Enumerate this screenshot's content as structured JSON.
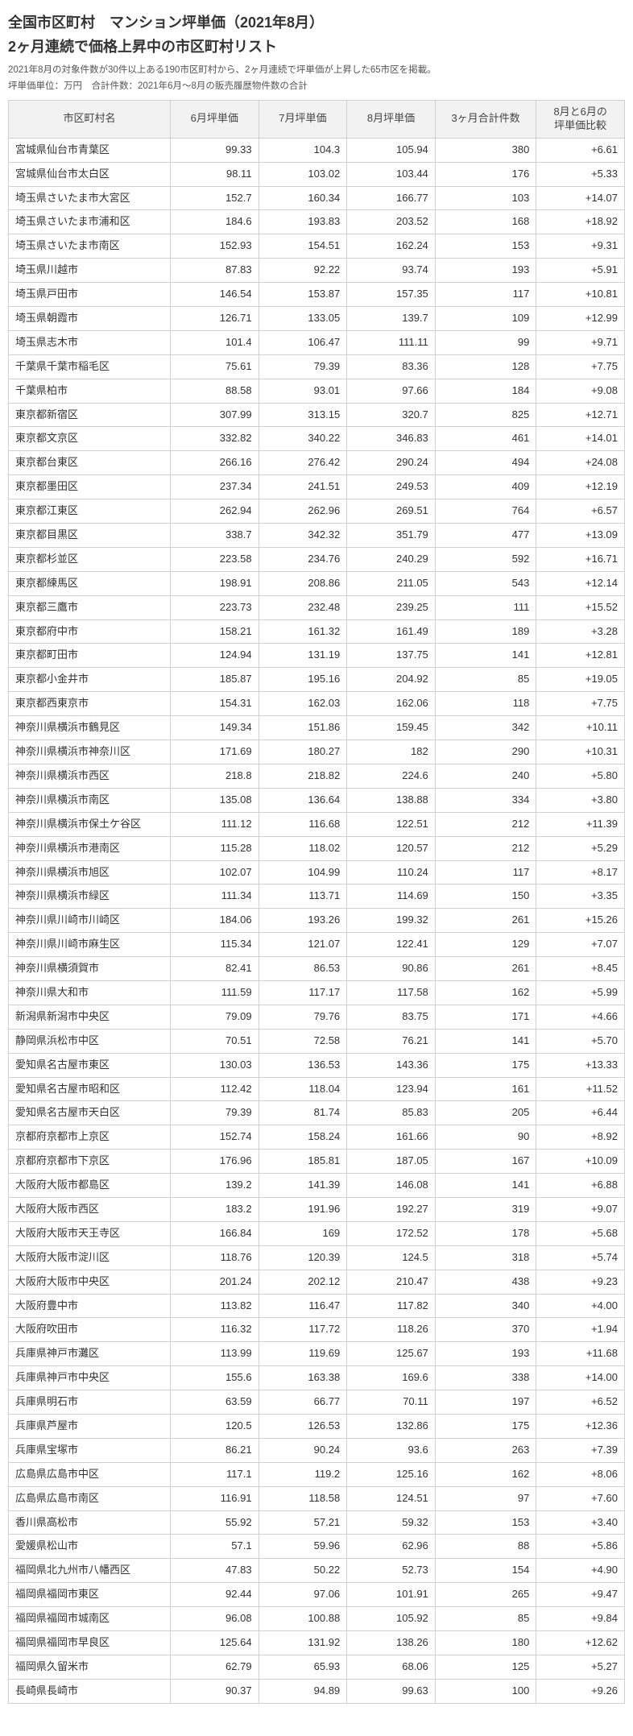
{
  "title1": "全国市区町村　マンション坪単価（2021年8月）",
  "title2": "2ヶ月連続で価格上昇中の市区町村リスト",
  "sub1": "2021年8月の対象件数が30件以上ある190市区町村から、2ヶ月連続で坪単価が上昇した65市区を掲載。",
  "sub2": "坪単価単位：万円　合計件数：2021年6月～8月の販売履歴物件数の合計",
  "headers": [
    "市区町村名",
    "6月坪単価",
    "7月坪単価",
    "8月坪単価",
    "3ヶ月合計件数",
    "8月と6月の\n坪単価比較"
  ],
  "rows": [
    [
      "宮城県仙台市青葉区",
      "99.33",
      "104.3",
      "105.94",
      "380",
      "+6.61"
    ],
    [
      "宮城県仙台市太白区",
      "98.11",
      "103.02",
      "103.44",
      "176",
      "+5.33"
    ],
    [
      "埼玉県さいたま市大宮区",
      "152.7",
      "160.34",
      "166.77",
      "103",
      "+14.07"
    ],
    [
      "埼玉県さいたま市浦和区",
      "184.6",
      "193.83",
      "203.52",
      "168",
      "+18.92"
    ],
    [
      "埼玉県さいたま市南区",
      "152.93",
      "154.51",
      "162.24",
      "153",
      "+9.31"
    ],
    [
      "埼玉県川越市",
      "87.83",
      "92.22",
      "93.74",
      "193",
      "+5.91"
    ],
    [
      "埼玉県戸田市",
      "146.54",
      "153.87",
      "157.35",
      "117",
      "+10.81"
    ],
    [
      "埼玉県朝霞市",
      "126.71",
      "133.05",
      "139.7",
      "109",
      "+12.99"
    ],
    [
      "埼玉県志木市",
      "101.4",
      "106.47",
      "111.11",
      "99",
      "+9.71"
    ],
    [
      "千葉県千葉市稲毛区",
      "75.61",
      "79.39",
      "83.36",
      "128",
      "+7.75"
    ],
    [
      "千葉県柏市",
      "88.58",
      "93.01",
      "97.66",
      "184",
      "+9.08"
    ],
    [
      "東京都新宿区",
      "307.99",
      "313.15",
      "320.7",
      "825",
      "+12.71"
    ],
    [
      "東京都文京区",
      "332.82",
      "340.22",
      "346.83",
      "461",
      "+14.01"
    ],
    [
      "東京都台東区",
      "266.16",
      "276.42",
      "290.24",
      "494",
      "+24.08"
    ],
    [
      "東京都墨田区",
      "237.34",
      "241.51",
      "249.53",
      "409",
      "+12.19"
    ],
    [
      "東京都江東区",
      "262.94",
      "262.96",
      "269.51",
      "764",
      "+6.57"
    ],
    [
      "東京都目黒区",
      "338.7",
      "342.32",
      "351.79",
      "477",
      "+13.09"
    ],
    [
      "東京都杉並区",
      "223.58",
      "234.76",
      "240.29",
      "592",
      "+16.71"
    ],
    [
      "東京都練馬区",
      "198.91",
      "208.86",
      "211.05",
      "543",
      "+12.14"
    ],
    [
      "東京都三鷹市",
      "223.73",
      "232.48",
      "239.25",
      "111",
      "+15.52"
    ],
    [
      "東京都府中市",
      "158.21",
      "161.32",
      "161.49",
      "189",
      "+3.28"
    ],
    [
      "東京都町田市",
      "124.94",
      "131.19",
      "137.75",
      "141",
      "+12.81"
    ],
    [
      "東京都小金井市",
      "185.87",
      "195.16",
      "204.92",
      "85",
      "+19.05"
    ],
    [
      "東京都西東京市",
      "154.31",
      "162.03",
      "162.06",
      "118",
      "+7.75"
    ],
    [
      "神奈川県横浜市鶴見区",
      "149.34",
      "151.86",
      "159.45",
      "342",
      "+10.11"
    ],
    [
      "神奈川県横浜市神奈川区",
      "171.69",
      "180.27",
      "182",
      "290",
      "+10.31"
    ],
    [
      "神奈川県横浜市西区",
      "218.8",
      "218.82",
      "224.6",
      "240",
      "+5.80"
    ],
    [
      "神奈川県横浜市南区",
      "135.08",
      "136.64",
      "138.88",
      "334",
      "+3.80"
    ],
    [
      "神奈川県横浜市保土ケ谷区",
      "111.12",
      "116.68",
      "122.51",
      "212",
      "+11.39"
    ],
    [
      "神奈川県横浜市港南区",
      "115.28",
      "118.02",
      "120.57",
      "212",
      "+5.29"
    ],
    [
      "神奈川県横浜市旭区",
      "102.07",
      "104.99",
      "110.24",
      "117",
      "+8.17"
    ],
    [
      "神奈川県横浜市緑区",
      "111.34",
      "113.71",
      "114.69",
      "150",
      "+3.35"
    ],
    [
      "神奈川県川崎市川崎区",
      "184.06",
      "193.26",
      "199.32",
      "261",
      "+15.26"
    ],
    [
      "神奈川県川崎市麻生区",
      "115.34",
      "121.07",
      "122.41",
      "129",
      "+7.07"
    ],
    [
      "神奈川県横須賀市",
      "82.41",
      "86.53",
      "90.86",
      "261",
      "+8.45"
    ],
    [
      "神奈川県大和市",
      "111.59",
      "117.17",
      "117.58",
      "162",
      "+5.99"
    ],
    [
      "新潟県新潟市中央区",
      "79.09",
      "79.76",
      "83.75",
      "171",
      "+4.66"
    ],
    [
      "静岡県浜松市中区",
      "70.51",
      "72.58",
      "76.21",
      "141",
      "+5.70"
    ],
    [
      "愛知県名古屋市東区",
      "130.03",
      "136.53",
      "143.36",
      "175",
      "+13.33"
    ],
    [
      "愛知県名古屋市昭和区",
      "112.42",
      "118.04",
      "123.94",
      "161",
      "+11.52"
    ],
    [
      "愛知県名古屋市天白区",
      "79.39",
      "81.74",
      "85.83",
      "205",
      "+6.44"
    ],
    [
      "京都府京都市上京区",
      "152.74",
      "158.24",
      "161.66",
      "90",
      "+8.92"
    ],
    [
      "京都府京都市下京区",
      "176.96",
      "185.81",
      "187.05",
      "167",
      "+10.09"
    ],
    [
      "大阪府大阪市都島区",
      "139.2",
      "141.39",
      "146.08",
      "141",
      "+6.88"
    ],
    [
      "大阪府大阪市西区",
      "183.2",
      "191.96",
      "192.27",
      "319",
      "+9.07"
    ],
    [
      "大阪府大阪市天王寺区",
      "166.84",
      "169",
      "172.52",
      "178",
      "+5.68"
    ],
    [
      "大阪府大阪市淀川区",
      "118.76",
      "120.39",
      "124.5",
      "318",
      "+5.74"
    ],
    [
      "大阪府大阪市中央区",
      "201.24",
      "202.12",
      "210.47",
      "438",
      "+9.23"
    ],
    [
      "大阪府豊中市",
      "113.82",
      "116.47",
      "117.82",
      "340",
      "+4.00"
    ],
    [
      "大阪府吹田市",
      "116.32",
      "117.72",
      "118.26",
      "370",
      "+1.94"
    ],
    [
      "兵庫県神戸市灘区",
      "113.99",
      "119.69",
      "125.67",
      "193",
      "+11.68"
    ],
    [
      "兵庫県神戸市中央区",
      "155.6",
      "163.38",
      "169.6",
      "338",
      "+14.00"
    ],
    [
      "兵庫県明石市",
      "63.59",
      "66.77",
      "70.11",
      "197",
      "+6.52"
    ],
    [
      "兵庫県芦屋市",
      "120.5",
      "126.53",
      "132.86",
      "175",
      "+12.36"
    ],
    [
      "兵庫県宝塚市",
      "86.21",
      "90.24",
      "93.6",
      "263",
      "+7.39"
    ],
    [
      "広島県広島市中区",
      "117.1",
      "119.2",
      "125.16",
      "162",
      "+8.06"
    ],
    [
      "広島県広島市南区",
      "116.91",
      "118.58",
      "124.51",
      "97",
      "+7.60"
    ],
    [
      "香川県高松市",
      "55.92",
      "57.21",
      "59.32",
      "153",
      "+3.40"
    ],
    [
      "愛媛県松山市",
      "57.1",
      "59.96",
      "62.96",
      "88",
      "+5.86"
    ],
    [
      "福岡県北九州市八幡西区",
      "47.83",
      "50.22",
      "52.73",
      "154",
      "+4.90"
    ],
    [
      "福岡県福岡市東区",
      "92.44",
      "97.06",
      "101.91",
      "265",
      "+9.47"
    ],
    [
      "福岡県福岡市城南区",
      "96.08",
      "100.88",
      "105.92",
      "85",
      "+9.84"
    ],
    [
      "福岡県福岡市早良区",
      "125.64",
      "131.92",
      "138.26",
      "180",
      "+12.62"
    ],
    [
      "福岡県久留米市",
      "62.79",
      "65.93",
      "68.06",
      "125",
      "+5.27"
    ],
    [
      "長崎県長崎市",
      "90.37",
      "94.89",
      "99.63",
      "100",
      "+9.26"
    ]
  ]
}
